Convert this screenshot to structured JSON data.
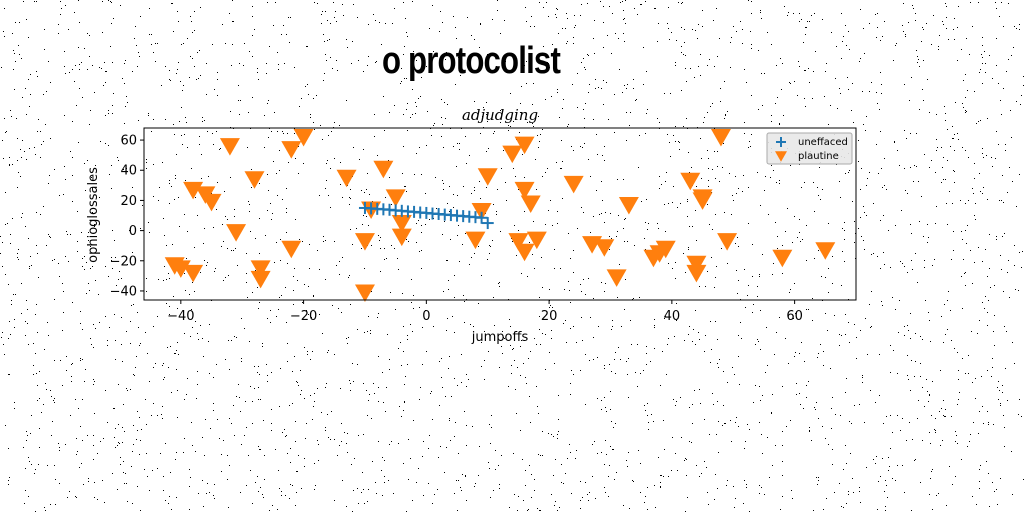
{
  "figure_title": "o protocolist",
  "chart_data": {
    "type": "scatter",
    "title": "adjudging",
    "xlabel": "jumpoffs",
    "ylabel": "ophioglossales",
    "xlim": [
      -46,
      70
    ],
    "ylim": [
      -46,
      68
    ],
    "xticks": [
      -40,
      -20,
      0,
      20,
      40,
      60
    ],
    "yticks": [
      -40,
      -20,
      0,
      20,
      40,
      60
    ],
    "grid": false,
    "legend_position": "top-right",
    "series": [
      {
        "name": "uneffaced",
        "marker": "plus",
        "color": "#1f77b4",
        "points": [
          [
            -10,
            15
          ],
          [
            -9,
            14.7
          ],
          [
            -8,
            14.4
          ],
          [
            -7,
            14.1
          ],
          [
            -6,
            13.8
          ],
          [
            -5,
            13.4
          ],
          [
            -4,
            13.1
          ],
          [
            -3,
            12.7
          ],
          [
            -2,
            12.4
          ],
          [
            -1,
            12.0
          ],
          [
            0,
            11.7
          ],
          [
            1,
            11.3
          ],
          [
            2,
            11.0
          ],
          [
            3,
            10.6
          ],
          [
            4,
            10.3
          ],
          [
            5,
            9.9
          ],
          [
            6,
            9.6
          ],
          [
            7,
            9.2
          ],
          [
            8,
            8.9
          ],
          [
            9,
            8.5
          ],
          [
            10,
            5
          ]
        ]
      },
      {
        "name": "plautine",
        "marker": "triangle-down",
        "color": "#ff7f0e",
        "points": [
          [
            -41,
            -23
          ],
          [
            -40,
            -25
          ],
          [
            -38,
            -28
          ],
          [
            -38,
            27
          ],
          [
            -36,
            24
          ],
          [
            -35,
            19
          ],
          [
            -32,
            56
          ],
          [
            -31,
            -1
          ],
          [
            -28,
            34
          ],
          [
            -27,
            -25
          ],
          [
            -27,
            -32
          ],
          [
            -22,
            -12
          ],
          [
            -22,
            54
          ],
          [
            -20,
            62
          ],
          [
            -13,
            35
          ],
          [
            -10,
            -7
          ],
          [
            -10,
            -41
          ],
          [
            -9,
            14
          ],
          [
            -7,
            41
          ],
          [
            -5,
            22
          ],
          [
            -4,
            -4
          ],
          [
            -4,
            5
          ],
          [
            8,
            -6
          ],
          [
            9,
            13
          ],
          [
            10,
            36
          ],
          [
            14,
            51
          ],
          [
            15,
            -7
          ],
          [
            16,
            57
          ],
          [
            16,
            27
          ],
          [
            16,
            -14
          ],
          [
            17,
            18
          ],
          [
            18,
            -6
          ],
          [
            24,
            31
          ],
          [
            27,
            -9
          ],
          [
            29,
            -11
          ],
          [
            31,
            -31
          ],
          [
            33,
            17
          ],
          [
            37,
            -18
          ],
          [
            38,
            -15
          ],
          [
            39,
            -12
          ],
          [
            43,
            33
          ],
          [
            44,
            -22
          ],
          [
            44,
            -28
          ],
          [
            45,
            20
          ],
          [
            45,
            22
          ],
          [
            48,
            62
          ],
          [
            49,
            -7
          ],
          [
            58,
            -18
          ],
          [
            65,
            -13
          ]
        ]
      }
    ]
  }
}
